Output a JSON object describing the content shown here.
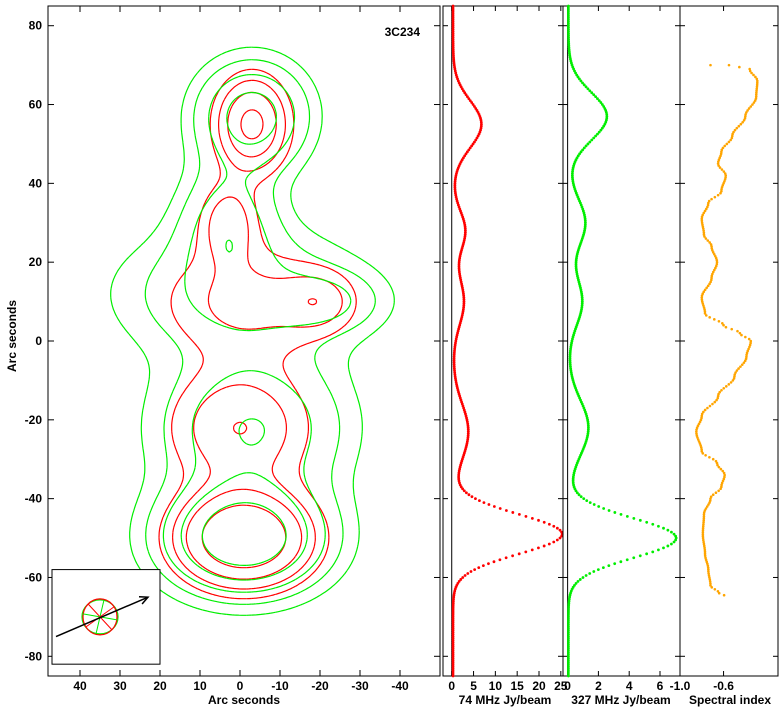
{
  "chart_data": [
    {
      "type": "contour",
      "source_label": "3C234",
      "xlabel": "Arc seconds",
      "ylabel": "Arc seconds",
      "xlim": [
        48,
        -50
      ],
      "ylim": [
        -85,
        85
      ],
      "x_ticks": [
        40,
        30,
        20,
        10,
        0,
        -10,
        -20,
        -30,
        -40
      ],
      "y_ticks": [
        80,
        60,
        40,
        20,
        0,
        -20,
        -40,
        -60,
        -80
      ],
      "series": [
        {
          "color": "#ff0000",
          "components": [
            {
              "x": -3,
              "y": 55,
              "sx": 6,
              "sy": 8,
              "amp": 1.0
            },
            {
              "x": 3,
              "y": 30,
              "sx": 5,
              "sy": 7,
              "amp": 0.5
            },
            {
              "x": -2,
              "y": 10,
              "sx": 16,
              "sy": 10,
              "amp": 0.45
            },
            {
              "x": -20,
              "y": 10,
              "sx": 6,
              "sy": 5,
              "amp": 0.35
            },
            {
              "x": 0,
              "y": -22,
              "sx": 12,
              "sy": 10,
              "amp": 0.6
            },
            {
              "x": -1,
              "y": -50,
              "sx": 11,
              "sy": 8,
              "amp": 1.4
            }
          ],
          "levels": [
            0.22,
            0.38,
            0.6,
            0.9
          ]
        },
        {
          "color": "#00ee00",
          "components": [
            {
              "x": -3,
              "y": 57,
              "sx": 9,
              "sy": 9,
              "amp": 1.0
            },
            {
              "x": 3,
              "y": 30,
              "sx": 8,
              "sy": 10,
              "amp": 0.6
            },
            {
              "x": 0,
              "y": 12,
              "sx": 20,
              "sy": 11,
              "amp": 0.55
            },
            {
              "x": -22,
              "y": 10,
              "sx": 9,
              "sy": 5,
              "amp": 0.35
            },
            {
              "x": -3,
              "y": -22,
              "sx": 15,
              "sy": 12,
              "amp": 0.8
            },
            {
              "x": -1,
              "y": -50,
              "sx": 13,
              "sy": 9,
              "amp": 1.6
            }
          ],
          "levels": [
            0.15,
            0.28,
            0.5,
            0.8,
            1.2
          ]
        }
      ],
      "beam_inset": {
        "center": [
          35,
          -70
        ],
        "arrow_from": [
          46,
          -75
        ],
        "arrow_to": [
          23,
          -65
        ]
      }
    },
    {
      "type": "line",
      "xlabel": "74 MHz Jy/beam",
      "xlim": [
        -2,
        25.5
      ],
      "ylim": [
        -85,
        85
      ],
      "x_ticks": [
        0,
        5,
        10,
        15,
        20,
        25
      ],
      "color": "#ff0000",
      "baseline": 0.3,
      "peaks": [
        [
          55,
          6.5,
          6
        ],
        [
          28,
          2.8,
          5
        ],
        [
          10,
          2.5,
          6
        ],
        [
          -23,
          3.5,
          7
        ],
        [
          -49,
          25,
          5
        ]
      ],
      "y_range": [
        -85,
        85
      ],
      "y_step": 0.5
    },
    {
      "type": "line",
      "xlabel": "327 MHz Jy/beam",
      "xlim": [
        -0.3,
        7.3
      ],
      "ylim": [
        -85,
        85
      ],
      "x_ticks": [
        0,
        2,
        4,
        6
      ],
      "color": "#00ee00",
      "baseline": 0.05,
      "peaks": [
        [
          57,
          2.5,
          6
        ],
        [
          30,
          1.1,
          6
        ],
        [
          10,
          0.9,
          6
        ],
        [
          -22,
          1.3,
          7
        ],
        [
          -50,
          7,
          5
        ]
      ],
      "y_range": [
        -85,
        85
      ],
      "y_step": 0.5
    },
    {
      "type": "line",
      "xlabel": "Spectral index",
      "xlim": [
        -1.0,
        -0.1
      ],
      "ylim": [
        -85,
        85
      ],
      "x_ticks": [
        -1.0,
        -0.6
      ],
      "x_tick_labels": [
        "-1.0",
        "-0.6"
      ],
      "color": "#ffa500",
      "points": [
        [
          -0.72,
          70
        ],
        [
          -0.55,
          70
        ],
        [
          -0.36,
          69
        ],
        [
          -0.29,
          66
        ],
        [
          -0.3,
          62
        ],
        [
          -0.4,
          57
        ],
        [
          -0.52,
          52
        ],
        [
          -0.62,
          48
        ],
        [
          -0.65,
          45
        ],
        [
          -0.58,
          42
        ],
        [
          -0.62,
          38
        ],
        [
          -0.74,
          35
        ],
        [
          -0.8,
          31
        ],
        [
          -0.78,
          27
        ],
        [
          -0.71,
          24
        ],
        [
          -0.66,
          20
        ],
        [
          -0.71,
          16
        ],
        [
          -0.8,
          11
        ],
        [
          -0.77,
          7
        ],
        [
          -0.6,
          4
        ],
        [
          -0.45,
          2
        ],
        [
          -0.35,
          0
        ],
        [
          -0.39,
          -4
        ],
        [
          -0.5,
          -9
        ],
        [
          -0.65,
          -14
        ],
        [
          -0.8,
          -19
        ],
        [
          -0.85,
          -23
        ],
        [
          -0.8,
          -28
        ],
        [
          -0.66,
          -31
        ],
        [
          -0.59,
          -34
        ],
        [
          -0.62,
          -37
        ],
        [
          -0.72,
          -40
        ],
        [
          -0.78,
          -44
        ],
        [
          -0.79,
          -49
        ],
        [
          -0.77,
          -54
        ],
        [
          -0.74,
          -58
        ],
        [
          -0.72,
          -62
        ],
        [
          -0.64,
          -64
        ],
        [
          -0.55,
          -65
        ]
      ],
      "sample_step": 0.5
    }
  ]
}
